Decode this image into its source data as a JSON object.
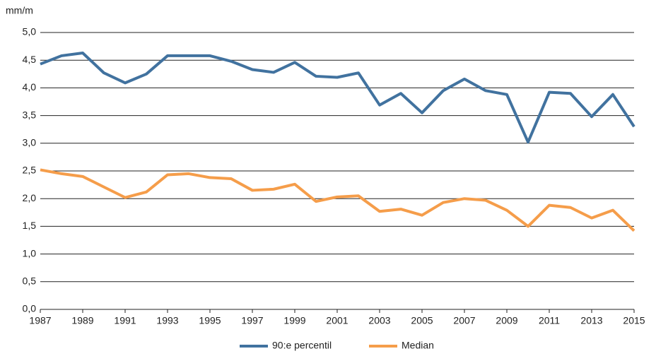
{
  "chart_data": {
    "type": "line",
    "ylabel": "mm/m",
    "x": [
      1987,
      1988,
      1989,
      1990,
      1991,
      1992,
      1993,
      1994,
      1995,
      1996,
      1997,
      1998,
      1999,
      2000,
      2001,
      2002,
      2003,
      2004,
      2005,
      2006,
      2007,
      2008,
      2009,
      2010,
      2011,
      2012,
      2013,
      2014,
      2015
    ],
    "series": [
      {
        "name": "90:e percentil",
        "color": "#41729f",
        "values": [
          4.43,
          4.58,
          4.63,
          4.27,
          4.09,
          4.25,
          4.58,
          4.58,
          4.58,
          4.48,
          4.33,
          4.28,
          4.46,
          4.21,
          4.19,
          4.27,
          3.69,
          3.9,
          3.55,
          3.95,
          4.16,
          3.95,
          3.88,
          3.02,
          3.92,
          3.9,
          3.48,
          3.88,
          3.3
        ]
      },
      {
        "name": "Median",
        "color": "#f59d4a",
        "values": [
          2.52,
          2.45,
          2.4,
          2.21,
          2.02,
          2.12,
          2.43,
          2.45,
          2.38,
          2.36,
          2.15,
          2.17,
          2.26,
          1.95,
          2.03,
          2.05,
          1.77,
          1.81,
          1.7,
          1.93,
          2.0,
          1.97,
          1.79,
          1.5,
          1.88,
          1.84,
          1.65,
          1.79,
          1.42
        ]
      }
    ],
    "xlim": [
      1987,
      2015
    ],
    "xticks": [
      1987,
      1989,
      1991,
      1993,
      1995,
      1997,
      1999,
      2001,
      2003,
      2005,
      2007,
      2009,
      2011,
      2013,
      2015
    ],
    "ylim": [
      0,
      5
    ],
    "yticks": [
      {
        "value": 0,
        "label": "0,0"
      },
      {
        "value": 0.5,
        "label": "0,5"
      },
      {
        "value": 1,
        "label": "1,0"
      },
      {
        "value": 1.5,
        "label": "1,5"
      },
      {
        "value": 2,
        "label": "2,0"
      },
      {
        "value": 2.5,
        "label": "2,5"
      },
      {
        "value": 3,
        "label": "3,0"
      },
      {
        "value": 3.5,
        "label": "3,5"
      },
      {
        "value": 4,
        "label": "4,0"
      },
      {
        "value": 4.5,
        "label": "4,5"
      },
      {
        "value": 5,
        "label": "5,0"
      }
    ],
    "grid": true,
    "legend": "bottom"
  }
}
